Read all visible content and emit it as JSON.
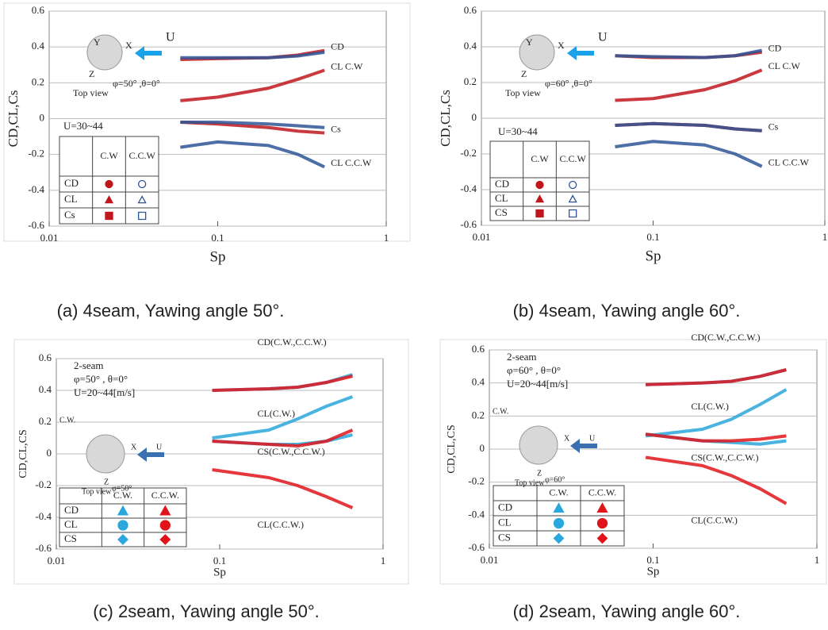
{
  "chart_data": [
    {
      "type": "line",
      "caption": "(a) 4seam, Yawing angle 50°.",
      "xlabel": "Sp",
      "ylabel": "CD,CL,Cs",
      "log_x": true,
      "grid": true,
      "xlim": [
        0.01,
        1
      ],
      "xticks": [
        0.01,
        0.1,
        1
      ],
      "ylim": [
        -0.6,
        0.6
      ],
      "yticks": [
        0.6,
        0.4,
        0.2,
        0,
        -0.2,
        -0.4,
        -0.6
      ],
      "x": [
        0.06,
        0.1,
        0.2,
        0.3,
        0.43
      ],
      "series": [
        {
          "name": "CD",
          "color": "#c0161c",
          "marker": "circle",
          "values": [
            0.33,
            0.335,
            0.34,
            0.355,
            0.38
          ]
        },
        {
          "name": "CL  C.W",
          "color": "#c0161c",
          "marker": "triangle",
          "values": [
            0.1,
            0.12,
            0.17,
            0.22,
            0.27
          ]
        },
        {
          "name": "Cs",
          "color": "#c0161c",
          "marker": "square",
          "values": [
            -0.02,
            -0.03,
            -0.05,
            -0.07,
            -0.08
          ]
        },
        {
          "color": "#2f5597",
          "marker": "circle",
          "values": [
            0.34,
            0.34,
            0.34,
            0.35,
            0.37
          ]
        },
        {
          "name": "CL C.C.W",
          "color": "#2f5597",
          "marker": "triangle",
          "values": [
            -0.16,
            -0.13,
            -0.15,
            -0.2,
            -0.27
          ]
        },
        {
          "color": "#2f5597",
          "marker": "square",
          "values": [
            -0.02,
            -0.02,
            -0.03,
            -0.04,
            -0.05
          ]
        }
      ],
      "legend": {
        "title": "U=30~44",
        "columns": [
          "C.W",
          "C.C.W"
        ],
        "rows": [
          "CD",
          "CL",
          "Cs"
        ]
      },
      "annotations": [
        "U",
        "X",
        "Y",
        "Z",
        "φ=50°  ,θ=0°",
        "Top view"
      ]
    },
    {
      "type": "line",
      "caption": "(b) 4seam, Yawing angle 60°.",
      "xlabel": "Sp",
      "ylabel": "CD,CL,Cs",
      "log_x": true,
      "grid": true,
      "xlim": [
        0.01,
        1
      ],
      "xticks": [
        0.01,
        0.1,
        1
      ],
      "ylim": [
        -0.6,
        0.6
      ],
      "yticks": [
        0.6,
        0.4,
        0.2,
        0,
        -0.2,
        -0.4,
        -0.6
      ],
      "x": [
        0.06,
        0.1,
        0.2,
        0.3,
        0.43
      ],
      "series": [
        {
          "name": "CD",
          "color": "#c0161c",
          "marker": "circle",
          "values": [
            0.35,
            0.34,
            0.34,
            0.35,
            0.37
          ]
        },
        {
          "name": "CL     C.W",
          "color": "#c0161c",
          "marker": "triangle",
          "values": [
            0.1,
            0.11,
            0.16,
            0.21,
            0.27
          ]
        },
        {
          "name": "Cs",
          "color": "#c0161c",
          "marker": "square",
          "values": [
            -0.04,
            -0.03,
            -0.04,
            -0.06,
            -0.07
          ]
        },
        {
          "color": "#2f5597",
          "marker": "circle",
          "values": [
            0.35,
            0.345,
            0.34,
            0.35,
            0.38
          ]
        },
        {
          "name": "CL  C.C.W",
          "color": "#2f5597",
          "marker": "triangle",
          "values": [
            -0.16,
            -0.13,
            -0.15,
            -0.2,
            -0.27
          ]
        },
        {
          "color": "#2f5597",
          "marker": "square",
          "values": [
            -0.04,
            -0.03,
            -0.04,
            -0.06,
            -0.07
          ]
        }
      ],
      "legend": {
        "title": "U=30~44",
        "columns": [
          "C.W",
          "C.C.W"
        ],
        "rows": [
          "CD",
          "CL",
          "CS"
        ]
      },
      "annotations": [
        "U",
        "X",
        "Y",
        "Z",
        "φ=60°  ,θ=0°",
        "Top view"
      ]
    },
    {
      "type": "line",
      "caption": "(c) 2seam, Yawing angle 50°.",
      "xlabel": "Sp",
      "ylabel": "CD,CL,CS",
      "log_x": true,
      "grid": true,
      "xlim": [
        0.01,
        1
      ],
      "xticks": [
        0.01,
        0.1,
        1
      ],
      "ylim": [
        -0.6,
        0.6
      ],
      "yticks": [
        0.6,
        0.4,
        0.2,
        0,
        -0.2,
        -0.4,
        -0.6
      ],
      "x": [
        0.09,
        0.2,
        0.3,
        0.45,
        0.65
      ],
      "series": [
        {
          "name": "CD(C.W.,C.C.W.)",
          "color": "#2aa7dc",
          "marker": "triangle",
          "values": [
            0.4,
            0.41,
            0.42,
            0.45,
            0.5
          ]
        },
        {
          "name": "CL(C.W.)",
          "color": "#2aa7dc",
          "marker": "circle",
          "values": [
            0.1,
            0.15,
            0.22,
            0.3,
            0.36
          ]
        },
        {
          "name": "CS(C.W.,C.C.W.)",
          "color": "#2aa7dc",
          "marker": "diamond",
          "values": [
            0.08,
            0.06,
            0.06,
            0.08,
            0.12
          ]
        },
        {
          "color": "#e0151b",
          "marker": "triangle",
          "values": [
            0.4,
            0.41,
            0.42,
            0.45,
            0.49
          ]
        },
        {
          "name": "CL(C.C.W.)",
          "color": "#e0151b",
          "marker": "circle",
          "values": [
            -0.1,
            -0.15,
            -0.2,
            -0.27,
            -0.34
          ]
        },
        {
          "color": "#e0151b",
          "marker": "diamond",
          "values": [
            0.08,
            0.06,
            0.05,
            0.08,
            0.15
          ]
        }
      ],
      "legend": {
        "columns": [
          "C.W.",
          "C.C.W."
        ],
        "rows": [
          "CD",
          "CL",
          "CS"
        ]
      },
      "annotations": [
        "2-seam",
        "φ=50°  ,  θ=0°",
        "U=20~44[m/s]",
        "C.W.",
        "X",
        "U",
        "Z",
        "Top view",
        "φ=50°"
      ]
    },
    {
      "type": "line",
      "caption": "(d) 2seam, Yawing angle 60°.",
      "xlabel": "Sp",
      "ylabel": "CD,CL,CS",
      "log_x": true,
      "grid": true,
      "xlim": [
        0.01,
        1
      ],
      "xticks": [
        0.01,
        0.1,
        1
      ],
      "ylim": [
        -0.6,
        0.6
      ],
      "yticks": [
        0.6,
        0.4,
        0.2,
        0,
        -0.2,
        -0.4,
        -0.6
      ],
      "x": [
        0.09,
        0.2,
        0.3,
        0.45,
        0.65
      ],
      "series": [
        {
          "name": "CD(C.W.,C.C.W.)",
          "color": "#2aa7dc",
          "marker": "triangle",
          "values": [
            0.39,
            0.4,
            0.41,
            0.44,
            0.48
          ]
        },
        {
          "name": "CL(C.W.)",
          "color": "#2aa7dc",
          "marker": "circle",
          "values": [
            0.08,
            0.12,
            0.18,
            0.27,
            0.36
          ]
        },
        {
          "name": "CS(C.W.,C.C.W.)",
          "color": "#2aa7dc",
          "marker": "diamond",
          "values": [
            0.09,
            0.05,
            0.04,
            0.03,
            0.05
          ]
        },
        {
          "color": "#e0151b",
          "marker": "triangle",
          "values": [
            0.39,
            0.4,
            0.41,
            0.44,
            0.48
          ]
        },
        {
          "name": "CL(C.C.W.)",
          "color": "#e0151b",
          "marker": "circle",
          "values": [
            -0.05,
            -0.1,
            -0.16,
            -0.24,
            -0.33
          ]
        },
        {
          "color": "#e0151b",
          "marker": "diamond",
          "values": [
            0.09,
            0.05,
            0.05,
            0.06,
            0.08
          ]
        }
      ],
      "legend": {
        "columns": [
          "C.W.",
          "C.C.W."
        ],
        "rows": [
          "CD",
          "CL",
          "CS"
        ]
      },
      "annotations": [
        "2-seam",
        "φ=60°  ,  θ=0°",
        "U=20~44[m/s]",
        "C.W.",
        "X",
        "U",
        "Z",
        "Top view",
        "φ=60°"
      ]
    }
  ]
}
